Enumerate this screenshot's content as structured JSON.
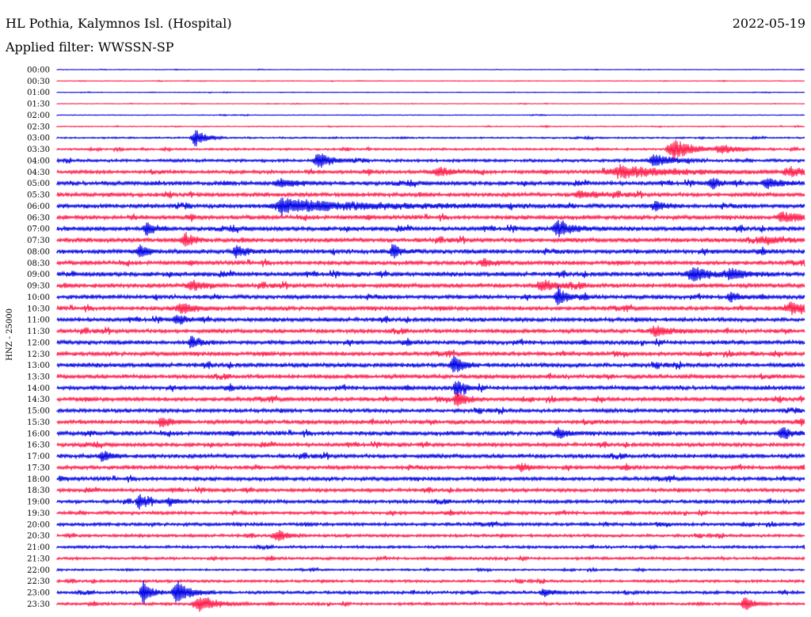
{
  "header": {
    "station": "HL Pothia, Kalymnos Isl. (Hospital)",
    "date": "2022-05-19",
    "filter_prefix": "Applied filter:",
    "filter_name": "WWSSN-SP"
  },
  "colors": {
    "trace_a": "#0000e6",
    "trace_b": "#ff1a4a",
    "background": "#ffffff",
    "text": "#000000"
  },
  "chart_data": {
    "type": "helicorder",
    "channel_label": "HNZ - 25000",
    "row_labels": [
      "00:00",
      "00:30",
      "01:00",
      "01:30",
      "02:00",
      "02:30",
      "03:00",
      "03:30",
      "04:00",
      "04:30",
      "05:00",
      "05:30",
      "06:00",
      "06:30",
      "07:00",
      "07:30",
      "08:00",
      "08:30",
      "09:00",
      "09:30",
      "10:00",
      "10:30",
      "11:00",
      "11:30",
      "12:00",
      "12:30",
      "13:00",
      "13:30",
      "14:00",
      "14:30",
      "15:00",
      "15:30",
      "16:00",
      "16:30",
      "17:00",
      "17:30",
      "18:00",
      "18:30",
      "19:00",
      "19:30",
      "20:00",
      "20:30",
      "21:00",
      "21:30",
      "22:00",
      "22:30",
      "23:00",
      "23:30"
    ],
    "row_color_cycle": [
      "trace_a",
      "trace_b"
    ],
    "noise_level_by_row": [
      0.5,
      0.5,
      0.5,
      0.5,
      0.6,
      0.7,
      1.2,
      1.6,
      2.2,
      2.6,
      3.0,
      3.0,
      3.2,
      3.0,
      3.2,
      3.2,
      3.2,
      3.0,
      3.2,
      3.2,
      3.0,
      3.0,
      3.0,
      3.0,
      3.0,
      3.0,
      3.2,
      3.0,
      3.0,
      3.0,
      2.8,
      3.0,
      3.0,
      2.8,
      3.0,
      2.8,
      2.8,
      2.6,
      2.6,
      2.4,
      2.4,
      2.2,
      2.0,
      2.0,
      1.4,
      2.0,
      2.2,
      2.0
    ],
    "events": [
      {
        "row": 6,
        "pos": 0.185,
        "amp": 11,
        "width": 0.012
      },
      {
        "row": 7,
        "pos": 0.825,
        "amp": 14,
        "width": 0.02
      },
      {
        "row": 7,
        "pos": 0.89,
        "amp": 6,
        "width": 0.02
      },
      {
        "row": 8,
        "pos": 0.35,
        "amp": 10,
        "width": 0.015
      },
      {
        "row": 8,
        "pos": 0.8,
        "amp": 8,
        "width": 0.02
      },
      {
        "row": 9,
        "pos": 0.76,
        "amp": 7,
        "width": 0.06
      },
      {
        "row": 9,
        "pos": 0.51,
        "amp": 5,
        "width": 0.02
      },
      {
        "row": 9,
        "pos": 0.98,
        "amp": 6,
        "width": 0.02
      },
      {
        "row": 10,
        "pos": 0.875,
        "amp": 7,
        "width": 0.01
      },
      {
        "row": 10,
        "pos": 0.95,
        "amp": 7,
        "width": 0.015
      },
      {
        "row": 10,
        "pos": 0.3,
        "amp": 5,
        "width": 0.02
      },
      {
        "row": 11,
        "pos": 0.7,
        "amp": 5,
        "width": 0.02
      },
      {
        "row": 12,
        "pos": 0.33,
        "amp": 6,
        "width": 0.1
      },
      {
        "row": 12,
        "pos": 0.3,
        "amp": 8,
        "width": 0.01
      },
      {
        "row": 12,
        "pos": 0.8,
        "amp": 6,
        "width": 0.01
      },
      {
        "row": 13,
        "pos": 0.97,
        "amp": 6,
        "width": 0.02
      },
      {
        "row": 14,
        "pos": 0.12,
        "amp": 9,
        "width": 0.01
      },
      {
        "row": 14,
        "pos": 0.67,
        "amp": 8,
        "width": 0.02
      },
      {
        "row": 15,
        "pos": 0.17,
        "amp": 10,
        "width": 0.01
      },
      {
        "row": 15,
        "pos": 0.95,
        "amp": 5,
        "width": 0.02
      },
      {
        "row": 16,
        "pos": 0.11,
        "amp": 8,
        "width": 0.01
      },
      {
        "row": 16,
        "pos": 0.24,
        "amp": 9,
        "width": 0.01
      },
      {
        "row": 16,
        "pos": 0.45,
        "amp": 8,
        "width": 0.01
      },
      {
        "row": 17,
        "pos": 0.57,
        "amp": 6,
        "width": 0.01
      },
      {
        "row": 18,
        "pos": 0.85,
        "amp": 9,
        "width": 0.02
      },
      {
        "row": 18,
        "pos": 0.9,
        "amp": 6,
        "width": 0.02
      },
      {
        "row": 19,
        "pos": 0.18,
        "amp": 7,
        "width": 0.015
      },
      {
        "row": 19,
        "pos": 0.65,
        "amp": 6,
        "width": 0.02
      },
      {
        "row": 20,
        "pos": 0.67,
        "amp": 13,
        "width": 0.01
      },
      {
        "row": 20,
        "pos": 0.9,
        "amp": 6,
        "width": 0.01
      },
      {
        "row": 21,
        "pos": 0.165,
        "amp": 7,
        "width": 0.015
      },
      {
        "row": 21,
        "pos": 0.98,
        "amp": 6,
        "width": 0.02
      },
      {
        "row": 22,
        "pos": 0.16,
        "amp": 6,
        "width": 0.01
      },
      {
        "row": 23,
        "pos": 0.8,
        "amp": 6,
        "width": 0.02
      },
      {
        "row": 24,
        "pos": 0.18,
        "amp": 6,
        "width": 0.01
      },
      {
        "row": 26,
        "pos": 0.53,
        "amp": 12,
        "width": 0.01
      },
      {
        "row": 28,
        "pos": 0.535,
        "amp": 10,
        "width": 0.01
      },
      {
        "row": 29,
        "pos": 0.535,
        "amp": 12,
        "width": 0.01
      },
      {
        "row": 31,
        "pos": 0.14,
        "amp": 7,
        "width": 0.01
      },
      {
        "row": 32,
        "pos": 0.67,
        "amp": 7,
        "width": 0.01
      },
      {
        "row": 32,
        "pos": 0.97,
        "amp": 9,
        "width": 0.01
      },
      {
        "row": 34,
        "pos": 0.06,
        "amp": 6,
        "width": 0.01
      },
      {
        "row": 35,
        "pos": 0.62,
        "amp": 5,
        "width": 0.01
      },
      {
        "row": 38,
        "pos": 0.11,
        "amp": 8,
        "width": 0.01
      },
      {
        "row": 38,
        "pos": 0.15,
        "amp": 5,
        "width": 0.01
      },
      {
        "row": 41,
        "pos": 0.295,
        "amp": 8,
        "width": 0.01
      },
      {
        "row": 46,
        "pos": 0.115,
        "amp": 15,
        "width": 0.01
      },
      {
        "row": 46,
        "pos": 0.16,
        "amp": 14,
        "width": 0.015
      },
      {
        "row": 46,
        "pos": 0.65,
        "amp": 5,
        "width": 0.01
      },
      {
        "row": 47,
        "pos": 0.19,
        "amp": 10,
        "width": 0.02
      },
      {
        "row": 47,
        "pos": 0.92,
        "amp": 9,
        "width": 0.01
      }
    ]
  }
}
